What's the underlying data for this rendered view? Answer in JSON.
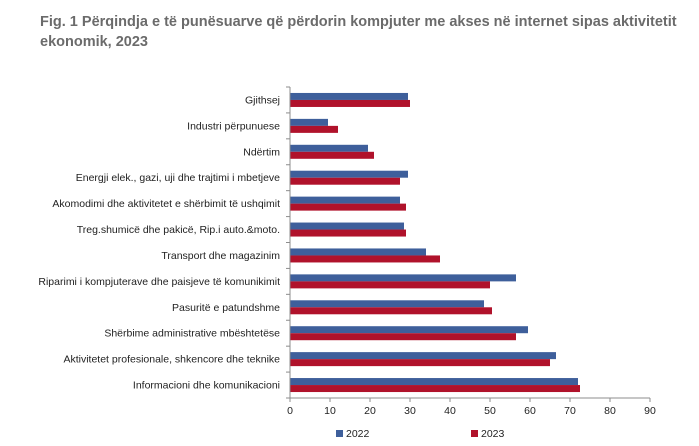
{
  "chart_data": {
    "type": "bar",
    "orientation": "horizontal",
    "title": "Fig. 1 Përqindja e të punësuarve që përdorin kompjuter me akses në internet sipas aktivitetit ekonomik, 2023",
    "categories": [
      "Gjithsej",
      "Industri përpunuese",
      "Ndërtim",
      "Energji elek., gazi, uji dhe trajtimi i mbetjeve",
      "Akomodimi dhe aktivitetet e shërbimit të ushqimit",
      "Treg.shumicë dhe pakicë, Rip.i auto.&moto.",
      "Transport dhe magazinim",
      "Riparimi i kompjuterave dhe paisjeve të komunikimit",
      "Pasuritë e patundshme",
      "Shërbime administrative mbështetëse",
      "Aktivitetet profesionale, shkencore dhe teknike",
      "Informacioni dhe komunikacioni"
    ],
    "series": [
      {
        "name": "2022",
        "color": "#3e5f9b",
        "values": [
          29.5,
          9.5,
          19.5,
          29.5,
          27.5,
          28.5,
          34,
          56.5,
          48.5,
          59.5,
          66.5,
          72
        ]
      },
      {
        "name": "2023",
        "color": "#b0122b",
        "values": [
          30,
          12,
          21,
          27.5,
          29,
          29,
          37.5,
          50,
          50.5,
          56.5,
          65,
          72.5
        ]
      }
    ],
    "xlim": [
      0,
      90
    ],
    "xticks": [
      "0",
      "10",
      "20",
      "30",
      "40",
      "50",
      "60",
      "70",
      "80",
      "90"
    ],
    "xlabel": "",
    "ylabel": "",
    "legend_position": "bottom",
    "grid": false
  }
}
